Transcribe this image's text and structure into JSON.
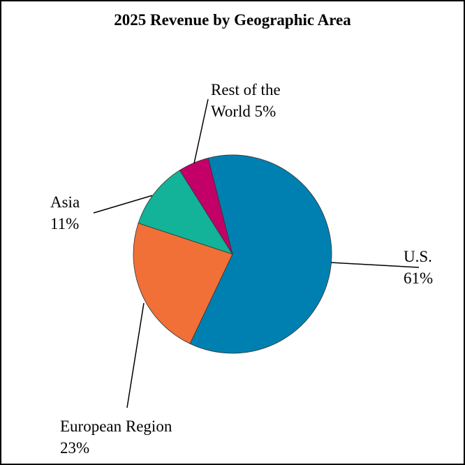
{
  "chart_data": {
    "type": "pie",
    "title": "2025 Revenue by Geographic Area",
    "categories": [
      "U.S.",
      "European Region",
      "Asia",
      "Rest of the World"
    ],
    "values": [
      61,
      23,
      11,
      5
    ],
    "value_labels": [
      "61%",
      "23%",
      "11%",
      "5%"
    ],
    "colors": [
      "#0080b0",
      "#f07038",
      "#12b398",
      "#c20068"
    ]
  }
}
